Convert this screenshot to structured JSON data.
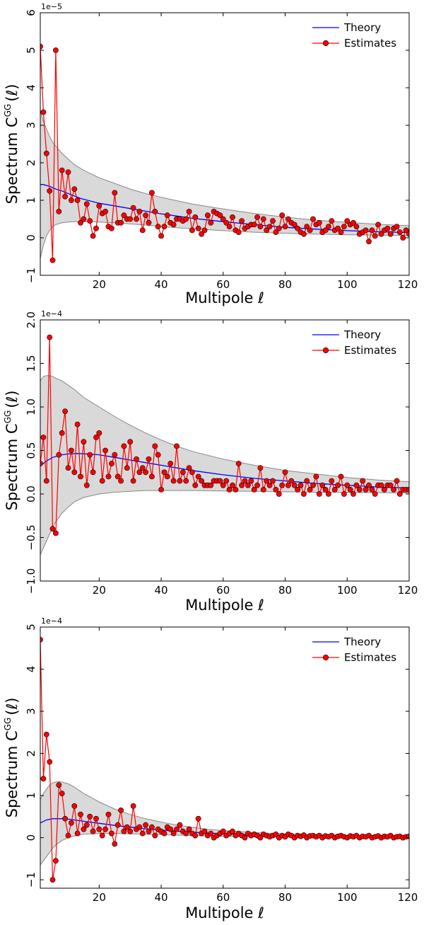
{
  "chart_data": [
    {
      "type": "line",
      "xlabel": "Multipole ℓ",
      "ylabel": "Spectrum C",
      "ylabel_sup": "GG",
      "ylabel_arg": "(ℓ)",
      "scale_label": "1e−5",
      "xlim": [
        1,
        120
      ],
      "ylim": [
        -1,
        6
      ],
      "xticks": [
        20,
        40,
        60,
        80,
        100,
        120
      ],
      "xtick_labels": [
        "20",
        "40",
        "60",
        "80",
        "100",
        "120"
      ],
      "yticks": [
        -1,
        0,
        1,
        2,
        3,
        4,
        5,
        6
      ],
      "ytick_labels": [
        "−1",
        "0",
        "1",
        "2",
        "3",
        "4",
        "5",
        "6"
      ],
      "legend": {
        "position": "top-right",
        "theory_label": "Theory",
        "estimates_label": "Estimates"
      },
      "theory": {
        "name": "Theory",
        "color": "#0000ff",
        "x": [
          1,
          2,
          4,
          6,
          8,
          10,
          14,
          20,
          30,
          40,
          50,
          60,
          70,
          80,
          90,
          100,
          110,
          120
        ],
        "y": [
          1.42,
          1.42,
          1.37,
          1.3,
          1.25,
          1.18,
          1.05,
          0.92,
          0.78,
          0.64,
          0.52,
          0.43,
          0.35,
          0.28,
          0.23,
          0.19,
          0.16,
          0.14
        ]
      },
      "band": {
        "color": "#d9d9d9",
        "edge_color": "#888888",
        "x": [
          1,
          2,
          3,
          4,
          5,
          6,
          8,
          10,
          12,
          15,
          20,
          25,
          30,
          35,
          40,
          50,
          60,
          70,
          80,
          90,
          100,
          110,
          120
        ],
        "upper": [
          3.4,
          3.1,
          2.9,
          2.7,
          2.55,
          2.45,
          2.25,
          2.1,
          1.95,
          1.8,
          1.6,
          1.45,
          1.3,
          1.18,
          1.08,
          0.9,
          0.77,
          0.65,
          0.55,
          0.47,
          0.41,
          0.36,
          0.32
        ],
        "lower": [
          -0.55,
          -0.2,
          0.05,
          0.2,
          0.3,
          0.35,
          0.4,
          0.42,
          0.43,
          0.43,
          0.42,
          0.4,
          0.37,
          0.34,
          0.3,
          0.24,
          0.19,
          0.15,
          0.12,
          0.1,
          0.08,
          0.07,
          0.06
        ]
      },
      "estimates": {
        "name": "Estimates",
        "color": "#ff0000",
        "x": [
          1,
          2,
          3,
          4,
          5,
          6,
          7,
          8,
          9,
          10,
          11,
          12,
          13,
          14,
          15,
          16,
          17,
          18,
          19,
          20,
          21,
          22,
          23,
          24,
          25,
          26,
          27,
          28,
          29,
          30,
          31,
          32,
          33,
          34,
          35,
          36,
          37,
          38,
          39,
          40,
          41,
          42,
          43,
          44,
          45,
          46,
          47,
          48,
          49,
          50,
          51,
          52,
          53,
          54,
          55,
          56,
          57,
          58,
          59,
          60,
          61,
          62,
          63,
          64,
          65,
          66,
          67,
          68,
          69,
          70,
          71,
          72,
          73,
          74,
          75,
          76,
          77,
          78,
          79,
          80,
          81,
          82,
          83,
          84,
          85,
          86,
          87,
          88,
          89,
          90,
          91,
          92,
          93,
          94,
          95,
          96,
          97,
          98,
          99,
          100,
          101,
          102,
          103,
          104,
          105,
          106,
          107,
          108,
          109,
          110,
          111,
          112,
          113,
          114,
          115,
          116,
          117,
          118,
          119,
          120
        ],
        "y": [
          5.1,
          3.35,
          2.25,
          1.25,
          -0.6,
          5.0,
          0.7,
          1.8,
          1.1,
          1.75,
          1.0,
          1.3,
          1.0,
          0.4,
          0.5,
          0.9,
          0.45,
          0.05,
          0.25,
          0.85,
          0.65,
          0.7,
          0.3,
          0.25,
          1.2,
          0.4,
          0.4,
          0.6,
          0.5,
          0.5,
          0.8,
          0.5,
          0.7,
          0.2,
          0.6,
          0.4,
          1.2,
          0.7,
          0.3,
          0.05,
          0.3,
          0.6,
          0.4,
          0.35,
          0.5,
          0.5,
          0.45,
          0.5,
          0.7,
          0.2,
          0.55,
          0.25,
          0.1,
          0.2,
          0.6,
          0.4,
          0.7,
          0.65,
          0.6,
          0.5,
          0.4,
          0.3,
          0.55,
          0.2,
          0.15,
          0.45,
          0.25,
          0.3,
          0.35,
          0.35,
          0.55,
          0.3,
          0.5,
          0.2,
          0.3,
          0.45,
          0.15,
          0.25,
          0.6,
          0.3,
          0.5,
          0.4,
          0.35,
          0.25,
          0.15,
          0.1,
          0.3,
          0.2,
          0.5,
          0.35,
          0.4,
          0.15,
          0.2,
          0.3,
          0.45,
          0.2,
          0.25,
          0.15,
          0.3,
          0.45,
          0.35,
          0.4,
          0.3,
          0.1,
          0.15,
          0.2,
          -0.1,
          0.2,
          0.05,
          0.35,
          0.1,
          0.2,
          0.25,
          0.1,
          0.25,
          0.3,
          0.15,
          0.0,
          0.2,
          0.1
        ]
      }
    },
    {
      "type": "line",
      "xlabel": "Multipole ℓ",
      "ylabel": "Spectrum C",
      "ylabel_sup": "GG",
      "ylabel_arg": "(ℓ)",
      "scale_label": "1e−4",
      "xlim": [
        1,
        120
      ],
      "ylim": [
        -1.0,
        2.0
      ],
      "xticks": [
        20,
        40,
        60,
        80,
        100,
        120
      ],
      "xtick_labels": [
        "20",
        "40",
        "60",
        "80",
        "100",
        "120"
      ],
      "yticks": [
        -1.0,
        -0.5,
        0.0,
        0.5,
        1.0,
        1.5,
        2.0
      ],
      "ytick_labels": [
        "−1.0",
        "−0.5",
        "0.0",
        "0.5",
        "1.0",
        "1.5",
        "2.0"
      ],
      "legend": {
        "position": "top-right",
        "theory_label": "Theory",
        "estimates_label": "Estimates"
      },
      "theory": {
        "name": "Theory",
        "color": "#0000ff",
        "x": [
          1,
          3,
          5,
          8,
          10,
          13,
          16,
          20,
          25,
          30,
          35,
          40,
          50,
          60,
          70,
          80,
          90,
          100,
          110,
          120
        ],
        "y": [
          0.32,
          0.38,
          0.42,
          0.45,
          0.46,
          0.465,
          0.46,
          0.45,
          0.42,
          0.39,
          0.36,
          0.33,
          0.27,
          0.22,
          0.18,
          0.15,
          0.12,
          0.1,
          0.08,
          0.07
        ]
      },
      "band": {
        "color": "#d9d9d9",
        "edge_color": "#888888",
        "x": [
          1,
          2,
          3,
          4,
          5,
          6,
          8,
          10,
          12,
          15,
          20,
          25,
          30,
          35,
          40,
          45,
          50,
          60,
          70,
          80,
          90,
          100,
          110,
          120
        ],
        "upper": [
          1.3,
          1.35,
          1.36,
          1.36,
          1.35,
          1.33,
          1.3,
          1.25,
          1.2,
          1.11,
          1.0,
          0.89,
          0.79,
          0.7,
          0.62,
          0.55,
          0.49,
          0.4,
          0.33,
          0.27,
          0.23,
          0.19,
          0.16,
          0.14
        ],
        "lower": [
          -0.7,
          -0.62,
          -0.54,
          -0.46,
          -0.38,
          -0.32,
          -0.22,
          -0.15,
          -0.09,
          -0.04,
          0.0,
          0.02,
          0.03,
          0.04,
          0.04,
          0.04,
          0.04,
          0.035,
          0.03,
          0.025,
          0.02,
          0.018,
          0.015,
          0.012
        ]
      },
      "estimates": {
        "name": "Estimates",
        "color": "#ff0000",
        "x": [
          1,
          2,
          3,
          4,
          5,
          6,
          7,
          8,
          9,
          10,
          11,
          12,
          13,
          14,
          15,
          16,
          17,
          18,
          19,
          20,
          21,
          22,
          23,
          24,
          25,
          26,
          27,
          28,
          29,
          30,
          31,
          32,
          33,
          34,
          35,
          36,
          37,
          38,
          39,
          40,
          41,
          42,
          43,
          44,
          45,
          46,
          47,
          48,
          49,
          50,
          51,
          52,
          53,
          54,
          55,
          56,
          57,
          58,
          59,
          60,
          61,
          62,
          63,
          64,
          65,
          66,
          67,
          68,
          69,
          70,
          71,
          72,
          73,
          74,
          75,
          76,
          77,
          78,
          79,
          80,
          81,
          82,
          83,
          84,
          85,
          86,
          87,
          88,
          89,
          90,
          91,
          92,
          93,
          94,
          95,
          96,
          97,
          98,
          99,
          100,
          101,
          102,
          103,
          104,
          105,
          106,
          107,
          108,
          109,
          110,
          111,
          112,
          113,
          114,
          115,
          116,
          117,
          118,
          119,
          120
        ],
        "y": [
          0.35,
          0.65,
          0.15,
          1.8,
          -0.4,
          -0.45,
          0.45,
          0.7,
          0.95,
          0.3,
          0.5,
          0.25,
          0.8,
          0.2,
          0.6,
          0.1,
          0.45,
          0.25,
          0.65,
          0.7,
          0.15,
          0.5,
          0.2,
          0.35,
          0.45,
          0.2,
          0.15,
          0.55,
          0.3,
          0.6,
          0.15,
          0.4,
          0.25,
          0.3,
          0.25,
          0.4,
          0.2,
          0.55,
          0.45,
          0.05,
          0.25,
          0.2,
          0.35,
          0.15,
          0.55,
          0.15,
          0.25,
          0.15,
          0.3,
          0.25,
          0.1,
          0.2,
          0.15,
          0.1,
          0.1,
          0.1,
          0.15,
          0.15,
          0.15,
          0.1,
          0.15,
          0.05,
          0.1,
          0.05,
          0.35,
          0.1,
          0.15,
          0.1,
          0.15,
          0.05,
          0.1,
          0.3,
          0.05,
          0.15,
          0.1,
          0.15,
          0.05,
          0.0,
          0.1,
          0.25,
          0.1,
          0.15,
          0.1,
          0.05,
          0.1,
          0.0,
          0.15,
          0.05,
          0.1,
          0.2,
          0.0,
          0.1,
          0.05,
          0.0,
          0.15,
          0.05,
          0.1,
          0.2,
          0.0,
          0.1,
          0.05,
          0.0,
          0.1,
          0.05,
          0.15,
          0.05,
          0.1,
          0.05,
          0.0,
          0.1,
          0.1,
          0.05,
          0.1,
          0.1,
          0.05,
          0.15,
          0.0,
          0.05,
          0.05,
          0.05
        ]
      }
    },
    {
      "type": "line",
      "xlabel": "Multipole ℓ",
      "ylabel": "Spectrum C",
      "ylabel_sup": "GG",
      "ylabel_arg": "(ℓ)",
      "scale_label": "1e−4",
      "xlim": [
        1,
        120
      ],
      "ylim": [
        -1.2,
        5
      ],
      "xticks": [
        20,
        40,
        60,
        80,
        100,
        120
      ],
      "xtick_labels": [
        "20",
        "40",
        "60",
        "80",
        "100",
        "120"
      ],
      "yticks": [
        -1,
        0,
        1,
        2,
        3,
        4,
        5
      ],
      "ytick_labels": [
        "−1",
        "0",
        "1",
        "2",
        "3",
        "4",
        "5"
      ],
      "legend": {
        "position": "top-right",
        "theory_label": "Theory",
        "estimates_label": "Estimates"
      },
      "theory": {
        "name": "Theory",
        "color": "#0000ff",
        "x": [
          1,
          3,
          5,
          8,
          10,
          12,
          15,
          20,
          25,
          30,
          35,
          40,
          50,
          60,
          70,
          80,
          90,
          100,
          110,
          120
        ],
        "y": [
          0.35,
          0.42,
          0.45,
          0.45,
          0.44,
          0.42,
          0.39,
          0.34,
          0.29,
          0.25,
          0.21,
          0.18,
          0.13,
          0.09,
          0.07,
          0.05,
          0.04,
          0.03,
          0.03,
          0.02
        ]
      },
      "band": {
        "color": "#d9d9d9",
        "edge_color": "#888888",
        "x": [
          1,
          2,
          3,
          4,
          5,
          6,
          7,
          8,
          10,
          12,
          15,
          20,
          25,
          30,
          35,
          40,
          45,
          50,
          55,
          60,
          70,
          80,
          90,
          100,
          110,
          120
        ],
        "upper": [
          0.9,
          1.05,
          1.15,
          1.25,
          1.3,
          1.32,
          1.33,
          1.32,
          1.28,
          1.2,
          1.05,
          0.85,
          0.68,
          0.55,
          0.45,
          0.37,
          0.3,
          0.25,
          0.2,
          0.17,
          0.12,
          0.09,
          0.07,
          0.06,
          0.05,
          0.04
        ],
        "lower": [
          -0.65,
          -0.55,
          -0.45,
          -0.35,
          -0.25,
          -0.18,
          -0.12,
          -0.07,
          0.0,
          0.04,
          0.08,
          0.1,
          0.1,
          0.09,
          0.08,
          0.07,
          0.06,
          0.05,
          0.04,
          0.03,
          0.02,
          0.015,
          0.01,
          0.008,
          0.006,
          0.005
        ]
      },
      "estimates": {
        "name": "Estimates",
        "color": "#ff0000",
        "x": [
          1,
          2,
          3,
          4,
          5,
          6,
          7,
          8,
          9,
          10,
          11,
          12,
          13,
          14,
          15,
          16,
          17,
          18,
          19,
          20,
          21,
          22,
          23,
          24,
          25,
          26,
          27,
          28,
          29,
          30,
          31,
          32,
          33,
          34,
          35,
          36,
          37,
          38,
          39,
          40,
          41,
          42,
          43,
          44,
          45,
          46,
          47,
          48,
          49,
          50,
          51,
          52,
          53,
          54,
          55,
          56,
          57,
          58,
          59,
          60,
          61,
          62,
          63,
          64,
          65,
          66,
          67,
          68,
          69,
          70,
          71,
          72,
          73,
          74,
          75,
          76,
          77,
          78,
          79,
          80,
          81,
          82,
          83,
          84,
          85,
          86,
          87,
          88,
          89,
          90,
          91,
          92,
          93,
          94,
          95,
          96,
          97,
          98,
          99,
          100,
          101,
          102,
          103,
          104,
          105,
          106,
          107,
          108,
          109,
          110,
          111,
          112,
          113,
          114,
          115,
          116,
          117,
          118,
          119,
          120
        ],
        "y": [
          4.7,
          1.4,
          2.45,
          1.8,
          -1.0,
          -0.55,
          1.25,
          1.05,
          0.45,
          0.05,
          0.35,
          0.75,
          0.1,
          0.55,
          0.2,
          0.3,
          0.5,
          0.15,
          0.45,
          0.2,
          0.05,
          0.2,
          0.55,
          0.1,
          -0.15,
          0.3,
          0.65,
          0.15,
          0.25,
          0.15,
          0.75,
          0.2,
          0.25,
          0.1,
          0.3,
          0.15,
          0.25,
          0.05,
          0.2,
          0.15,
          0.1,
          0.25,
          0.2,
          0.1,
          0.2,
          0.3,
          0.15,
          0.1,
          0.2,
          0.1,
          0.05,
          0.45,
          0.1,
          0.15,
          0.05,
          0.1,
          0.0,
          0.05,
          0.1,
          0.15,
          0.05,
          0.1,
          0.15,
          0.05,
          0.1,
          0.05,
          0.0,
          0.1,
          0.05,
          0.08,
          0.05,
          0.0,
          0.08,
          0.05,
          0.02,
          0.05,
          0.08,
          0.0,
          0.05,
          0.02,
          0.08,
          0.05,
          0.0,
          0.05,
          0.03,
          0.06,
          0.0,
          0.04,
          0.05,
          0.02,
          0.05,
          0.0,
          0.04,
          0.02,
          0.05,
          0.0,
          0.03,
          0.05,
          0.02,
          0.0,
          0.04,
          0.02,
          0.05,
          0.0,
          0.03,
          0.02,
          0.05,
          0.0,
          0.02,
          0.04,
          0.0,
          0.03,
          0.02,
          0.05,
          0.0,
          0.02,
          0.03,
          0.0,
          0.02,
          0.03
        ]
      }
    }
  ]
}
